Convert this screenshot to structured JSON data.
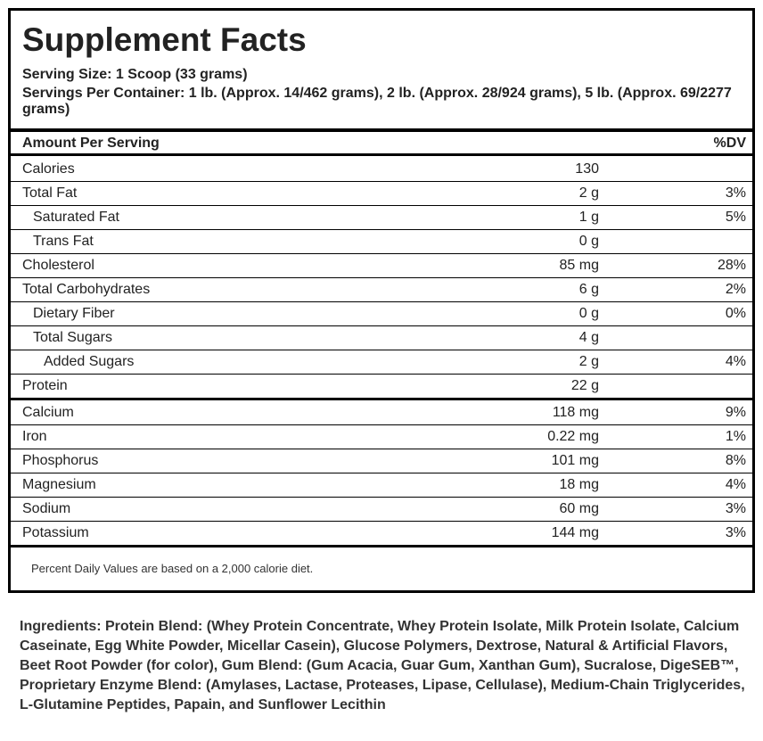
{
  "title": "Supplement Facts",
  "serving_size": "Serving Size: 1 Scoop (33 grams)",
  "servings_per_container": "Servings Per Container: 1 lb. (Approx. 14/462 grams), 2 lb. (Approx. 28/924 grams), 5 lb. (Approx. 69/2277 grams)",
  "header": {
    "amount_per_serving": "Amount Per Serving",
    "dv": "%DV"
  },
  "nutrients": [
    {
      "label": "Calories",
      "amount": "130",
      "dv": ""
    },
    {
      "label": "Total Fat",
      "amount": "2 g",
      "dv": "3%"
    },
    {
      "label": "Saturated Fat",
      "amount": "1 g",
      "dv": "5%"
    },
    {
      "label": "Trans Fat",
      "amount": "0 g",
      "dv": ""
    },
    {
      "label": "Cholesterol",
      "amount": "85 mg",
      "dv": "28%"
    },
    {
      "label": "Total Carbohydrates",
      "amount": "6 g",
      "dv": "2%"
    },
    {
      "label": "Dietary Fiber",
      "amount": "0 g",
      "dv": "0%"
    },
    {
      "label": "Total Sugars",
      "amount": "4 g",
      "dv": ""
    },
    {
      "label": "Added Sugars",
      "amount": "2 g",
      "dv": "4%"
    },
    {
      "label": "Protein",
      "amount": "22 g",
      "dv": ""
    }
  ],
  "minerals": [
    {
      "label": "Calcium",
      "amount": "118 mg",
      "dv": "9%"
    },
    {
      "label": "Iron",
      "amount": "0.22 mg",
      "dv": "1%"
    },
    {
      "label": "Phosphorus",
      "amount": "101 mg",
      "dv": "8%"
    },
    {
      "label": "Magnesium",
      "amount": "18 mg",
      "dv": "4%"
    },
    {
      "label": "Sodium",
      "amount": "60 mg",
      "dv": "3%"
    },
    {
      "label": "Potassium",
      "amount": "144 mg",
      "dv": "3%"
    }
  ],
  "footnote": "Percent Daily Values are based on a 2,000 calorie diet.",
  "ingredients": "Ingredients: Protein Blend: (Whey Protein Concentrate, Whey Protein Isolate, Milk Protein Isolate, Calcium Caseinate, Egg White Powder, Micellar Casein), Glucose Polymers, Dextrose, Natural & Artificial Flavors, Beet Root Powder (for color), Gum Blend: (Gum Acacia, Guar Gum, Xanthan Gum), Sucralose, DigeSEB™, Proprietary Enzyme Blend: (Amylases, Lactase, Proteases, Lipase, Cellulase), Medium-Chain Triglycerides, L-Glutamine Peptides, Papain, and Sunflower Lecithin"
}
